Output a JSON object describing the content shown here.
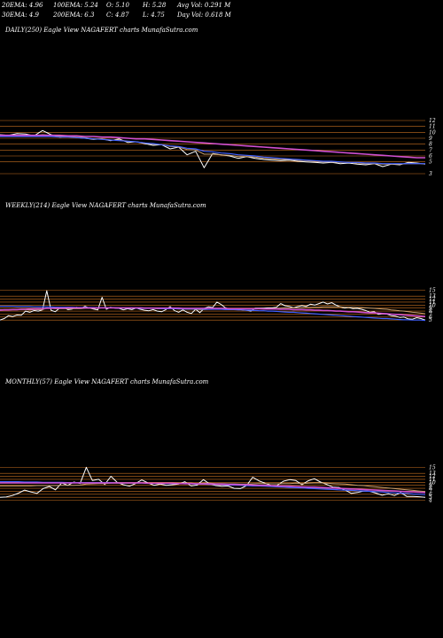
{
  "stats": {
    "row1": [
      "20EMA: 4.96",
      "100EMA: 5.24",
      "O: 5.10",
      "H: 5.28",
      "Avg Vol: 0.291 M"
    ],
    "row2": [
      "30EMA: 4.9",
      "200EMA: 6.3",
      "C: 4.87",
      "L: 4.75",
      "Day Vol: 0.618  M"
    ]
  },
  "panels": {
    "daily": {
      "title": "DAILY(250) Eagle   View  NAGAFERT charts MunafaSutra.com"
    },
    "weekly": {
      "title": "WEEKLY(214) Eagle   View  NAGAFERT charts MunafaSutra.com"
    },
    "monthly": {
      "title": "MONTHLY(57) Eagle   View  NAGAFERT charts MunafaSutra.com"
    }
  },
  "colors": {
    "background": "#000000",
    "price": "#ffffff",
    "price_highlight": "#3da0ff",
    "ema_short": "#c8a070",
    "ema_long": "#d050d0",
    "ema_mid": "#4060ff",
    "grid": "#c87020"
  },
  "chart_data": [
    {
      "type": "line",
      "panel": "daily",
      "y_ticks": [
        12,
        11,
        10,
        9,
        8,
        7,
        6,
        5,
        3
      ],
      "ylim": [
        3,
        12
      ],
      "series": [
        {
          "role": "price",
          "values": [
            9.6,
            9.5,
            9.8,
            9.7,
            9.4,
            10.3,
            9.6,
            9.2,
            9.3,
            9.1,
            9.0,
            8.8,
            8.9,
            8.6,
            8.9,
            8.3,
            8.4,
            8.1,
            7.8,
            7.9,
            7.2,
            7.5,
            6.2,
            6.8,
            4.0,
            6.4,
            6.2,
            6.0,
            5.6,
            5.9,
            5.6,
            5.4,
            5.3,
            5.2,
            5.3,
            5.1,
            5.0,
            4.9,
            4.8,
            4.9,
            4.7,
            4.8,
            4.6,
            4.5,
            4.7,
            4.2,
            4.6,
            4.5,
            4.9,
            4.8,
            4.6
          ]
        },
        {
          "role": "ema_short",
          "values": [
            9.4,
            9.4,
            9.5,
            9.5,
            9.4,
            9.6,
            9.5,
            9.3,
            9.3,
            9.2,
            9.1,
            8.9,
            8.9,
            8.7,
            8.7,
            8.5,
            8.4,
            8.2,
            8.0,
            7.9,
            7.6,
            7.5,
            7.1,
            7.0,
            6.3,
            6.3,
            6.2,
            6.1,
            5.9,
            5.9,
            5.8,
            5.6,
            5.5,
            5.4,
            5.4,
            5.3,
            5.2,
            5.1,
            5.0,
            5.0,
            4.9,
            4.9,
            4.8,
            4.7,
            4.7,
            4.6,
            4.6,
            4.6,
            4.7,
            4.7,
            4.7
          ]
        },
        {
          "role": "ema_mid",
          "values": [
            9.3,
            9.3,
            9.3,
            9.3,
            9.3,
            9.3,
            9.3,
            9.2,
            9.2,
            9.1,
            9.0,
            8.9,
            8.8,
            8.7,
            8.6,
            8.5,
            8.4,
            8.2,
            8.1,
            7.9,
            7.7,
            7.6,
            7.3,
            7.2,
            6.8,
            6.7,
            6.5,
            6.4,
            6.2,
            6.1,
            6.0,
            5.8,
            5.7,
            5.6,
            5.5,
            5.4,
            5.3,
            5.2,
            5.1,
            5.1,
            5.0,
            4.9,
            4.9,
            4.8,
            4.8,
            4.7,
            4.7,
            4.7,
            4.7,
            4.7,
            4.7
          ]
        },
        {
          "role": "ema_long",
          "values": [
            9.5,
            9.5,
            9.5,
            9.5,
            9.5,
            9.5,
            9.5,
            9.5,
            9.4,
            9.4,
            9.3,
            9.3,
            9.2,
            9.2,
            9.1,
            9.0,
            8.9,
            8.9,
            8.8,
            8.7,
            8.6,
            8.5,
            8.4,
            8.3,
            8.2,
            8.1,
            8.0,
            7.9,
            7.8,
            7.7,
            7.6,
            7.5,
            7.4,
            7.3,
            7.2,
            7.1,
            7.0,
            6.9,
            6.8,
            6.7,
            6.6,
            6.5,
            6.4,
            6.3,
            6.2,
            6.1,
            6.0,
            5.9,
            5.8,
            5.7,
            5.7
          ]
        }
      ]
    },
    {
      "type": "line",
      "panel": "weekly",
      "y_ticks": [
        15,
        13,
        12,
        11,
        10,
        9,
        8,
        7,
        6,
        5
      ],
      "ylim": [
        3,
        16
      ],
      "series": [
        {
          "role": "price",
          "values": [
            5.0,
            5.5,
            6.5,
            6.2,
            6.7,
            6.6,
            8.0,
            7.6,
            8.2,
            8.0,
            8.4,
            14.8,
            8.3,
            7.8,
            9.0,
            9.2,
            8.5,
            8.7,
            9.3,
            8.9,
            9.6,
            9.0,
            8.7,
            8.4,
            12.6,
            8.6,
            9.3,
            9.0,
            8.9,
            8.4,
            8.8,
            8.5,
            9.0,
            8.6,
            8.3,
            8.1,
            8.5,
            8.0,
            7.8,
            8.5,
            9.5,
            8.2,
            7.6,
            8.4,
            7.6,
            7.2,
            8.6,
            7.5,
            8.9,
            9.4,
            9.2,
            11.0,
            10.2,
            9.1,
            8.6,
            8.7,
            8.6,
            8.4,
            8.3,
            8.0,
            9.0,
            9.0,
            9.0,
            9.1,
            9.1,
            9.3,
            10.5,
            9.8,
            9.6,
            9.1,
            9.5,
            9.8,
            9.6,
            10.3,
            10.0,
            10.5,
            11.0,
            10.4,
            10.8,
            10.0,
            9.4,
            9.0,
            9.2,
            8.8,
            8.9,
            8.6,
            8.2,
            7.6,
            7.8,
            6.9,
            7.1,
            7.0,
            6.5,
            6.3,
            5.9,
            6.0,
            5.4,
            5.3,
            5.8,
            5.5,
            5.0
          ]
        },
        {
          "role": "ema_short",
          "values": [
            8.5,
            8.5,
            8.5,
            8.5,
            8.5,
            8.5,
            8.5,
            8.4,
            8.5,
            8.5,
            8.5,
            9.0,
            8.9,
            8.8,
            8.8,
            8.8,
            8.8,
            8.8,
            8.8,
            8.8,
            8.9,
            8.9,
            8.9,
            8.9,
            9.1,
            9.1,
            9.1,
            9.1,
            9.1,
            9.0,
            9.0,
            9.0,
            9.0,
            9.0,
            8.9,
            8.9,
            8.9,
            8.8,
            8.8,
            8.8,
            8.8,
            8.8,
            8.7,
            8.7,
            8.6,
            8.6,
            8.6,
            8.5,
            8.5,
            8.6,
            8.6,
            8.7,
            8.8,
            8.8,
            8.8,
            8.8,
            8.8,
            8.8,
            8.8,
            8.8,
            8.8,
            8.8,
            8.8,
            8.8,
            8.8,
            8.9,
            9.0,
            9.1,
            9.1,
            9.1,
            9.1,
            9.1,
            9.2,
            9.2,
            9.3,
            9.3,
            9.4,
            9.4,
            9.4,
            9.4,
            9.4,
            9.3,
            9.3,
            9.3,
            9.2,
            9.2,
            9.1,
            9.0,
            8.9,
            8.8,
            8.7,
            8.6,
            8.4,
            8.3,
            8.1,
            8.0,
            7.8,
            7.6,
            7.5,
            7.3,
            7.1
          ]
        },
        {
          "role": "ema_mid",
          "values": [
            9.6,
            9.6,
            9.6,
            9.6,
            9.5,
            9.5,
            9.5,
            9.5,
            9.4,
            9.4,
            9.4,
            9.4,
            9.4,
            9.3,
            9.3,
            9.3,
            9.3,
            9.3,
            9.2,
            9.2,
            9.2,
            9.2,
            9.2,
            9.1,
            9.1,
            9.1,
            9.1,
            9.1,
            9.0,
            9.0,
            9.0,
            9.0,
            9.0,
            8.9,
            8.9,
            8.9,
            8.9,
            8.9,
            8.8,
            8.8,
            8.8,
            8.8,
            8.8,
            8.7,
            8.7,
            8.7,
            8.7,
            8.7,
            8.6,
            8.6,
            8.6,
            8.6,
            8.6,
            8.5,
            8.5,
            8.5,
            8.4,
            8.4,
            8.3,
            8.3,
            8.2,
            8.1,
            8.1,
            8.0,
            8.0,
            7.9,
            7.8,
            7.7,
            7.6,
            7.6,
            7.5,
            7.4,
            7.3,
            7.2,
            7.1,
            7.0,
            6.9,
            6.8,
            6.7,
            6.6,
            6.5,
            6.4,
            6.3,
            6.2,
            6.1,
            6.0,
            5.9,
            5.8,
            5.7,
            5.6,
            5.5,
            5.5,
            5.4,
            5.3,
            5.2,
            5.1,
            5.1,
            5.0,
            5.0,
            5.0,
            4.9
          ]
        },
        {
          "role": "ema_long",
          "values": [
            8.3,
            8.4,
            8.4,
            8.5,
            8.5,
            8.6,
            8.6,
            8.7,
            8.7,
            8.8,
            8.8,
            8.9,
            8.9,
            9.0,
            9.0,
            9.0,
            9.1,
            9.1,
            9.1,
            9.1,
            9.1,
            9.1,
            9.1,
            9.1,
            9.1,
            9.1,
            9.1,
            9.1,
            9.1,
            9.1,
            9.1,
            9.1,
            9.1,
            9.1,
            9.0,
            9.0,
            9.0,
            9.0,
            9.0,
            9.0,
            9.0,
            9.0,
            9.0,
            8.9,
            8.9,
            8.9,
            8.9,
            8.9,
            8.9,
            8.9,
            8.9,
            8.9,
            8.9,
            8.9,
            8.8,
            8.8,
            8.8,
            8.8,
            8.8,
            8.8,
            8.8,
            8.8,
            8.7,
            8.7,
            8.7,
            8.7,
            8.6,
            8.6,
            8.6,
            8.5,
            8.5,
            8.5,
            8.4,
            8.4,
            8.3,
            8.3,
            8.2,
            8.2,
            8.1,
            8.0,
            8.0,
            7.9,
            7.8,
            7.8,
            7.7,
            7.6,
            7.5,
            7.4,
            7.4,
            7.3,
            7.2,
            7.1,
            7.0,
            6.9,
            6.8,
            6.7,
            6.6,
            6.5,
            6.4,
            6.3,
            6.2
          ]
        }
      ]
    },
    {
      "type": "line",
      "panel": "monthly",
      "y_ticks": [
        15,
        13,
        12,
        11,
        10,
        9,
        8,
        7,
        6,
        5,
        4
      ],
      "ylim": [
        3,
        16
      ],
      "series": [
        {
          "role": "price",
          "values": [
            5.0,
            5.1,
            5.6,
            6.4,
            7.4,
            6.8,
            6.3,
            7.9,
            8.6,
            7.5,
            9.8,
            9.0,
            10.1,
            9.6,
            15.0,
            10.6,
            11.0,
            9.3,
            12.0,
            10.0,
            9.2,
            8.7,
            9.6,
            10.8,
            9.8,
            9.0,
            9.4,
            9.0,
            9.2,
            9.4,
            10.2,
            8.8,
            9.1,
            10.9,
            9.5,
            8.9,
            8.7,
            8.8,
            8.0,
            7.9,
            8.9,
            11.7,
            10.5,
            9.7,
            8.9,
            9.0,
            10.4,
            10.9,
            10.6,
            9.2,
            10.5,
            11.2,
            10.1,
            9.3,
            8.4,
            8.3,
            7.4,
            6.3,
            6.6,
            7.1,
            7.0,
            6.4,
            5.7,
            6.2,
            5.6,
            6.6,
            5.3,
            5.3,
            5.2,
            5.0
          ]
        },
        {
          "role": "ema_short",
          "values": [
            8.8,
            8.8,
            8.8,
            8.8,
            8.8,
            8.8,
            8.9,
            8.9,
            8.9,
            8.9,
            9.0,
            9.0,
            9.0,
            9.1,
            9.4,
            9.5,
            9.6,
            9.6,
            9.7,
            9.7,
            9.7,
            9.7,
            9.7,
            9.8,
            9.8,
            9.8,
            9.7,
            9.7,
            9.7,
            9.7,
            9.7,
            9.7,
            9.6,
            9.7,
            9.7,
            9.6,
            9.6,
            9.5,
            9.5,
            9.4,
            9.4,
            9.5,
            9.6,
            9.6,
            9.5,
            9.5,
            9.6,
            9.6,
            9.7,
            9.6,
            9.7,
            9.8,
            9.8,
            9.7,
            9.6,
            9.5,
            9.4,
            9.2,
            9.0,
            8.9,
            8.7,
            8.5,
            8.3,
            8.1,
            7.9,
            7.7,
            7.5,
            7.3,
            7.1,
            6.9
          ]
        },
        {
          "role": "ema_mid",
          "values": [
            10.2,
            10.2,
            10.2,
            10.2,
            10.1,
            10.1,
            10.1,
            10.0,
            10.0,
            10.0,
            10.0,
            9.9,
            9.9,
            9.9,
            9.9,
            9.9,
            9.9,
            9.9,
            9.9,
            9.8,
            9.8,
            9.8,
            9.8,
            9.8,
            9.7,
            9.7,
            9.7,
            9.6,
            9.6,
            9.6,
            9.5,
            9.5,
            9.4,
            9.4,
            9.3,
            9.3,
            9.2,
            9.1,
            9.1,
            9.0,
            8.9,
            8.8,
            8.8,
            8.7,
            8.6,
            8.5,
            8.4,
            8.3,
            8.2,
            8.1,
            8.0,
            7.9,
            7.8,
            7.7,
            7.6,
            7.5,
            7.4,
            7.3,
            7.2,
            7.1,
            7.0,
            6.9,
            6.8,
            6.6,
            6.5,
            6.4,
            6.3,
            6.1,
            6.0,
            5.9
          ]
        },
        {
          "role": "ema_long",
          "values": [
            9.8,
            9.8,
            9.8,
            9.8,
            9.8,
            9.8,
            9.8,
            9.8,
            9.8,
            9.8,
            9.8,
            9.8,
            9.8,
            9.8,
            9.8,
            9.8,
            9.8,
            9.8,
            9.8,
            9.8,
            9.8,
            9.8,
            9.8,
            9.8,
            9.7,
            9.7,
            9.7,
            9.7,
            9.7,
            9.6,
            9.6,
            9.6,
            9.5,
            9.5,
            9.5,
            9.4,
            9.4,
            9.3,
            9.3,
            9.2,
            9.2,
            9.1,
            9.0,
            9.0,
            8.9,
            8.8,
            8.8,
            8.7,
            8.6,
            8.5,
            8.4,
            8.4,
            8.3,
            8.2,
            8.1,
            8.0,
            7.9,
            7.8,
            7.7,
            7.6,
            7.5,
            7.4,
            7.3,
            7.2,
            7.1,
            7.0,
            6.9,
            6.8,
            6.7,
            6.6
          ]
        }
      ]
    }
  ]
}
